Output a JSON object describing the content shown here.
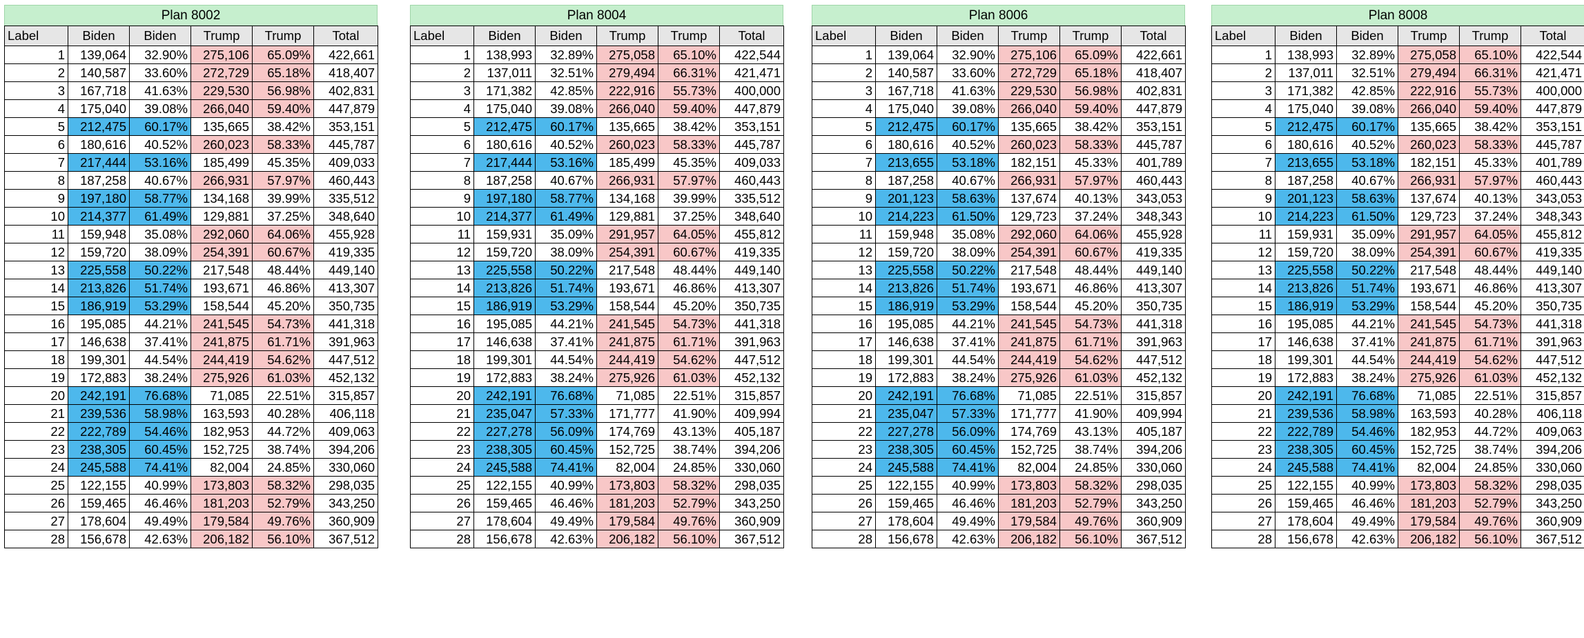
{
  "headers": {
    "label": "Label",
    "biden": "Biden",
    "biden_pct": "Biden",
    "trump": "Trump",
    "trump_pct": "Trump",
    "total": "Total"
  },
  "colors": {
    "dem_win": "#4db8ec",
    "rep_win": "#f8c7c7",
    "title_bg": "#c6efce",
    "header_bg": "#e6e6e6"
  },
  "plans": [
    {
      "title": "Plan 8002",
      "rows": [
        [
          "1",
          "139,064",
          "32.90%",
          "275,106",
          "65.09%",
          "422,661",
          "R"
        ],
        [
          "2",
          "140,587",
          "33.60%",
          "272,729",
          "65.18%",
          "418,407",
          "R"
        ],
        [
          "3",
          "167,718",
          "41.63%",
          "229,530",
          "56.98%",
          "402,831",
          "R"
        ],
        [
          "4",
          "175,040",
          "39.08%",
          "266,040",
          "59.40%",
          "447,879",
          "R"
        ],
        [
          "5",
          "212,475",
          "60.17%",
          "135,665",
          "38.42%",
          "353,151",
          "D"
        ],
        [
          "6",
          "180,616",
          "40.52%",
          "260,023",
          "58.33%",
          "445,787",
          "R"
        ],
        [
          "7",
          "217,444",
          "53.16%",
          "185,499",
          "45.35%",
          "409,033",
          "D"
        ],
        [
          "8",
          "187,258",
          "40.67%",
          "266,931",
          "57.97%",
          "460,443",
          "R"
        ],
        [
          "9",
          "197,180",
          "58.77%",
          "134,168",
          "39.99%",
          "335,512",
          "D"
        ],
        [
          "10",
          "214,377",
          "61.49%",
          "129,881",
          "37.25%",
          "348,640",
          "D"
        ],
        [
          "11",
          "159,948",
          "35.08%",
          "292,060",
          "64.06%",
          "455,928",
          "R"
        ],
        [
          "12",
          "159,720",
          "38.09%",
          "254,391",
          "60.67%",
          "419,335",
          "R"
        ],
        [
          "13",
          "225,558",
          "50.22%",
          "217,548",
          "48.44%",
          "449,140",
          "D"
        ],
        [
          "14",
          "213,826",
          "51.74%",
          "193,671",
          "46.86%",
          "413,307",
          "D"
        ],
        [
          "15",
          "186,919",
          "53.29%",
          "158,544",
          "45.20%",
          "350,735",
          "D"
        ],
        [
          "16",
          "195,085",
          "44.21%",
          "241,545",
          "54.73%",
          "441,318",
          "R"
        ],
        [
          "17",
          "146,638",
          "37.41%",
          "241,875",
          "61.71%",
          "391,963",
          "R"
        ],
        [
          "18",
          "199,301",
          "44.54%",
          "244,419",
          "54.62%",
          "447,512",
          "R"
        ],
        [
          "19",
          "172,883",
          "38.24%",
          "275,926",
          "61.03%",
          "452,132",
          "R"
        ],
        [
          "20",
          "242,191",
          "76.68%",
          "71,085",
          "22.51%",
          "315,857",
          "D"
        ],
        [
          "21",
          "239,536",
          "58.98%",
          "163,593",
          "40.28%",
          "406,118",
          "D"
        ],
        [
          "22",
          "222,789",
          "54.46%",
          "182,953",
          "44.72%",
          "409,063",
          "D"
        ],
        [
          "23",
          "238,305",
          "60.45%",
          "152,725",
          "38.74%",
          "394,206",
          "D"
        ],
        [
          "24",
          "245,588",
          "74.41%",
          "82,004",
          "24.85%",
          "330,060",
          "D"
        ],
        [
          "25",
          "122,155",
          "40.99%",
          "173,803",
          "58.32%",
          "298,035",
          "R"
        ],
        [
          "26",
          "159,465",
          "46.46%",
          "181,203",
          "52.79%",
          "343,250",
          "R"
        ],
        [
          "27",
          "178,604",
          "49.49%",
          "179,584",
          "49.76%",
          "360,909",
          "R"
        ],
        [
          "28",
          "156,678",
          "42.63%",
          "206,182",
          "56.10%",
          "367,512",
          "R"
        ]
      ]
    },
    {
      "title": "Plan 8004",
      "rows": [
        [
          "1",
          "138,993",
          "32.89%",
          "275,058",
          "65.10%",
          "422,544",
          "R"
        ],
        [
          "2",
          "137,011",
          "32.51%",
          "279,494",
          "66.31%",
          "421,471",
          "R"
        ],
        [
          "3",
          "171,382",
          "42.85%",
          "222,916",
          "55.73%",
          "400,000",
          "R"
        ],
        [
          "4",
          "175,040",
          "39.08%",
          "266,040",
          "59.40%",
          "447,879",
          "R"
        ],
        [
          "5",
          "212,475",
          "60.17%",
          "135,665",
          "38.42%",
          "353,151",
          "D"
        ],
        [
          "6",
          "180,616",
          "40.52%",
          "260,023",
          "58.33%",
          "445,787",
          "R"
        ],
        [
          "7",
          "217,444",
          "53.16%",
          "185,499",
          "45.35%",
          "409,033",
          "D"
        ],
        [
          "8",
          "187,258",
          "40.67%",
          "266,931",
          "57.97%",
          "460,443",
          "R"
        ],
        [
          "9",
          "197,180",
          "58.77%",
          "134,168",
          "39.99%",
          "335,512",
          "D"
        ],
        [
          "10",
          "214,377",
          "61.49%",
          "129,881",
          "37.25%",
          "348,640",
          "D"
        ],
        [
          "11",
          "159,931",
          "35.09%",
          "291,957",
          "64.05%",
          "455,812",
          "R"
        ],
        [
          "12",
          "159,720",
          "38.09%",
          "254,391",
          "60.67%",
          "419,335",
          "R"
        ],
        [
          "13",
          "225,558",
          "50.22%",
          "217,548",
          "48.44%",
          "449,140",
          "D"
        ],
        [
          "14",
          "213,826",
          "51.74%",
          "193,671",
          "46.86%",
          "413,307",
          "D"
        ],
        [
          "15",
          "186,919",
          "53.29%",
          "158,544",
          "45.20%",
          "350,735",
          "D"
        ],
        [
          "16",
          "195,085",
          "44.21%",
          "241,545",
          "54.73%",
          "441,318",
          "R"
        ],
        [
          "17",
          "146,638",
          "37.41%",
          "241,875",
          "61.71%",
          "391,963",
          "R"
        ],
        [
          "18",
          "199,301",
          "44.54%",
          "244,419",
          "54.62%",
          "447,512",
          "R"
        ],
        [
          "19",
          "172,883",
          "38.24%",
          "275,926",
          "61.03%",
          "452,132",
          "R"
        ],
        [
          "20",
          "242,191",
          "76.68%",
          "71,085",
          "22.51%",
          "315,857",
          "D"
        ],
        [
          "21",
          "235,047",
          "57.33%",
          "171,777",
          "41.90%",
          "409,994",
          "D"
        ],
        [
          "22",
          "227,278",
          "56.09%",
          "174,769",
          "43.13%",
          "405,187",
          "D"
        ],
        [
          "23",
          "238,305",
          "60.45%",
          "152,725",
          "38.74%",
          "394,206",
          "D"
        ],
        [
          "24",
          "245,588",
          "74.41%",
          "82,004",
          "24.85%",
          "330,060",
          "D"
        ],
        [
          "25",
          "122,155",
          "40.99%",
          "173,803",
          "58.32%",
          "298,035",
          "R"
        ],
        [
          "26",
          "159,465",
          "46.46%",
          "181,203",
          "52.79%",
          "343,250",
          "R"
        ],
        [
          "27",
          "178,604",
          "49.49%",
          "179,584",
          "49.76%",
          "360,909",
          "R"
        ],
        [
          "28",
          "156,678",
          "42.63%",
          "206,182",
          "56.10%",
          "367,512",
          "R"
        ]
      ]
    },
    {
      "title": "Plan 8006",
      "rows": [
        [
          "1",
          "139,064",
          "32.90%",
          "275,106",
          "65.09%",
          "422,661",
          "R"
        ],
        [
          "2",
          "140,587",
          "33.60%",
          "272,729",
          "65.18%",
          "418,407",
          "R"
        ],
        [
          "3",
          "167,718",
          "41.63%",
          "229,530",
          "56.98%",
          "402,831",
          "R"
        ],
        [
          "4",
          "175,040",
          "39.08%",
          "266,040",
          "59.40%",
          "447,879",
          "R"
        ],
        [
          "5",
          "212,475",
          "60.17%",
          "135,665",
          "38.42%",
          "353,151",
          "D"
        ],
        [
          "6",
          "180,616",
          "40.52%",
          "260,023",
          "58.33%",
          "445,787",
          "R"
        ],
        [
          "7",
          "213,655",
          "53.18%",
          "182,151",
          "45.33%",
          "401,789",
          "D"
        ],
        [
          "8",
          "187,258",
          "40.67%",
          "266,931",
          "57.97%",
          "460,443",
          "R"
        ],
        [
          "9",
          "201,123",
          "58.63%",
          "137,674",
          "40.13%",
          "343,053",
          "D"
        ],
        [
          "10",
          "214,223",
          "61.50%",
          "129,723",
          "37.24%",
          "348,343",
          "D"
        ],
        [
          "11",
          "159,948",
          "35.08%",
          "292,060",
          "64.06%",
          "455,928",
          "R"
        ],
        [
          "12",
          "159,720",
          "38.09%",
          "254,391",
          "60.67%",
          "419,335",
          "R"
        ],
        [
          "13",
          "225,558",
          "50.22%",
          "217,548",
          "48.44%",
          "449,140",
          "D"
        ],
        [
          "14",
          "213,826",
          "51.74%",
          "193,671",
          "46.86%",
          "413,307",
          "D"
        ],
        [
          "15",
          "186,919",
          "53.29%",
          "158,544",
          "45.20%",
          "350,735",
          "D"
        ],
        [
          "16",
          "195,085",
          "44.21%",
          "241,545",
          "54.73%",
          "441,318",
          "R"
        ],
        [
          "17",
          "146,638",
          "37.41%",
          "241,875",
          "61.71%",
          "391,963",
          "R"
        ],
        [
          "18",
          "199,301",
          "44.54%",
          "244,419",
          "54.62%",
          "447,512",
          "R"
        ],
        [
          "19",
          "172,883",
          "38.24%",
          "275,926",
          "61.03%",
          "452,132",
          "R"
        ],
        [
          "20",
          "242,191",
          "76.68%",
          "71,085",
          "22.51%",
          "315,857",
          "D"
        ],
        [
          "21",
          "235,047",
          "57.33%",
          "171,777",
          "41.90%",
          "409,994",
          "D"
        ],
        [
          "22",
          "227,278",
          "56.09%",
          "174,769",
          "43.13%",
          "405,187",
          "D"
        ],
        [
          "23",
          "238,305",
          "60.45%",
          "152,725",
          "38.74%",
          "394,206",
          "D"
        ],
        [
          "24",
          "245,588",
          "74.41%",
          "82,004",
          "24.85%",
          "330,060",
          "D"
        ],
        [
          "25",
          "122,155",
          "40.99%",
          "173,803",
          "58.32%",
          "298,035",
          "R"
        ],
        [
          "26",
          "159,465",
          "46.46%",
          "181,203",
          "52.79%",
          "343,250",
          "R"
        ],
        [
          "27",
          "178,604",
          "49.49%",
          "179,584",
          "49.76%",
          "360,909",
          "R"
        ],
        [
          "28",
          "156,678",
          "42.63%",
          "206,182",
          "56.10%",
          "367,512",
          "R"
        ]
      ]
    },
    {
      "title": "Plan 8008",
      "rows": [
        [
          "1",
          "138,993",
          "32.89%",
          "275,058",
          "65.10%",
          "422,544",
          "R"
        ],
        [
          "2",
          "137,011",
          "32.51%",
          "279,494",
          "66.31%",
          "421,471",
          "R"
        ],
        [
          "3",
          "171,382",
          "42.85%",
          "222,916",
          "55.73%",
          "400,000",
          "R"
        ],
        [
          "4",
          "175,040",
          "39.08%",
          "266,040",
          "59.40%",
          "447,879",
          "R"
        ],
        [
          "5",
          "212,475",
          "60.17%",
          "135,665",
          "38.42%",
          "353,151",
          "D"
        ],
        [
          "6",
          "180,616",
          "40.52%",
          "260,023",
          "58.33%",
          "445,787",
          "R"
        ],
        [
          "7",
          "213,655",
          "53.18%",
          "182,151",
          "45.33%",
          "401,789",
          "D"
        ],
        [
          "8",
          "187,258",
          "40.67%",
          "266,931",
          "57.97%",
          "460,443",
          "R"
        ],
        [
          "9",
          "201,123",
          "58.63%",
          "137,674",
          "40.13%",
          "343,053",
          "D"
        ],
        [
          "10",
          "214,223",
          "61.50%",
          "129,723",
          "37.24%",
          "348,343",
          "D"
        ],
        [
          "11",
          "159,931",
          "35.09%",
          "291,957",
          "64.05%",
          "455,812",
          "R"
        ],
        [
          "12",
          "159,720",
          "38.09%",
          "254,391",
          "60.67%",
          "419,335",
          "R"
        ],
        [
          "13",
          "225,558",
          "50.22%",
          "217,548",
          "48.44%",
          "449,140",
          "D"
        ],
        [
          "14",
          "213,826",
          "51.74%",
          "193,671",
          "46.86%",
          "413,307",
          "D"
        ],
        [
          "15",
          "186,919",
          "53.29%",
          "158,544",
          "45.20%",
          "350,735",
          "D"
        ],
        [
          "16",
          "195,085",
          "44.21%",
          "241,545",
          "54.73%",
          "441,318",
          "R"
        ],
        [
          "17",
          "146,638",
          "37.41%",
          "241,875",
          "61.71%",
          "391,963",
          "R"
        ],
        [
          "18",
          "199,301",
          "44.54%",
          "244,419",
          "54.62%",
          "447,512",
          "R"
        ],
        [
          "19",
          "172,883",
          "38.24%",
          "275,926",
          "61.03%",
          "452,132",
          "R"
        ],
        [
          "20",
          "242,191",
          "76.68%",
          "71,085",
          "22.51%",
          "315,857",
          "D"
        ],
        [
          "21",
          "239,536",
          "58.98%",
          "163,593",
          "40.28%",
          "406,118",
          "D"
        ],
        [
          "22",
          "222,789",
          "54.46%",
          "182,953",
          "44.72%",
          "409,063",
          "D"
        ],
        [
          "23",
          "238,305",
          "60.45%",
          "152,725",
          "38.74%",
          "394,206",
          "D"
        ],
        [
          "24",
          "245,588",
          "74.41%",
          "82,004",
          "24.85%",
          "330,060",
          "D"
        ],
        [
          "25",
          "122,155",
          "40.99%",
          "173,803",
          "58.32%",
          "298,035",
          "R"
        ],
        [
          "26",
          "159,465",
          "46.46%",
          "181,203",
          "52.79%",
          "343,250",
          "R"
        ],
        [
          "27",
          "178,604",
          "49.49%",
          "179,584",
          "49.76%",
          "360,909",
          "R"
        ],
        [
          "28",
          "156,678",
          "42.63%",
          "206,182",
          "56.10%",
          "367,512",
          "R"
        ]
      ]
    }
  ]
}
